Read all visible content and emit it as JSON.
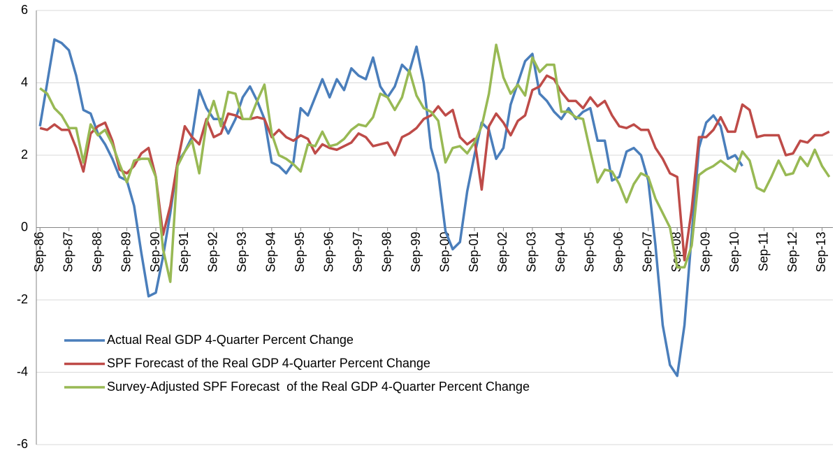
{
  "chart_data": {
    "type": "line",
    "categories": [
      "Sep-86",
      null,
      null,
      null,
      "Sep-87",
      null,
      null,
      null,
      "Sep-88",
      null,
      null,
      null,
      "Sep-89",
      null,
      null,
      null,
      "Sep-90",
      null,
      null,
      null,
      "Sep-91",
      null,
      null,
      null,
      "Sep-92",
      null,
      null,
      null,
      "Sep-93",
      null,
      null,
      null,
      "Sep-94",
      null,
      null,
      null,
      "Sep-95",
      null,
      null,
      null,
      "Sep-96",
      null,
      null,
      null,
      "Sep-97",
      null,
      null,
      null,
      "Sep-98",
      null,
      null,
      null,
      "Sep-99",
      null,
      null,
      null,
      "Sep-00",
      null,
      null,
      null,
      "Sep-01",
      null,
      null,
      null,
      "Sep-02",
      null,
      null,
      null,
      "Sep-03",
      null,
      null,
      null,
      "Sep-04",
      null,
      null,
      null,
      "Sep-05",
      null,
      null,
      null,
      "Sep-06",
      null,
      null,
      null,
      "Sep-07",
      null,
      null,
      null,
      "Sep-08",
      null,
      null,
      null,
      "Sep-09",
      null,
      null,
      null,
      "Sep-10",
      null,
      null,
      null,
      "Sep-11",
      null,
      null,
      null,
      "Sep-12",
      null,
      null,
      null,
      "Sep-13",
      null
    ],
    "series": [
      {
        "name": "Actual Real GDP 4-Quarter Percent Change",
        "color": "#4a7ebb",
        "values": [
          2.8,
          4.0,
          5.2,
          5.1,
          4.9,
          4.2,
          3.25,
          3.15,
          2.6,
          2.3,
          1.9,
          1.4,
          1.3,
          0.6,
          -0.7,
          -1.9,
          -1.8,
          -0.8,
          0.4,
          1.8,
          2.1,
          2.5,
          3.8,
          3.3,
          3.0,
          3.0,
          2.6,
          3.0,
          3.6,
          3.9,
          3.5,
          3.0,
          1.8,
          1.7,
          1.5,
          1.8,
          3.3,
          3.1,
          3.6,
          4.1,
          3.6,
          4.1,
          3.8,
          4.4,
          4.2,
          4.1,
          4.7,
          3.9,
          3.6,
          3.9,
          4.5,
          4.3,
          5.0,
          4.0,
          2.2,
          1.5,
          -0.1,
          -0.6,
          -0.4,
          1.0,
          2.0,
          2.9,
          2.7,
          1.9,
          2.2,
          3.4,
          4.0,
          4.6,
          4.8,
          3.7,
          3.5,
          3.2,
          3.0,
          3.3,
          3.0,
          3.2,
          3.3,
          2.4,
          2.4,
          1.3,
          1.4,
          2.1,
          2.2,
          2.0,
          1.3,
          -0.5,
          -2.7,
          -3.8,
          -4.1,
          -2.7,
          -0.2,
          2.2,
          2.9,
          3.1,
          2.8,
          1.9,
          2.0,
          1.7,
          null,
          null,
          null,
          null,
          null,
          null,
          null,
          null,
          null,
          null,
          null,
          null
        ]
      },
      {
        "name": "SPF Forecast of the Real GDP 4-Quarter Percent Change",
        "color": "#be4b48",
        "values": [
          2.75,
          2.7,
          2.85,
          2.7,
          2.7,
          2.2,
          1.55,
          2.6,
          2.8,
          2.9,
          2.4,
          1.6,
          1.5,
          1.7,
          2.05,
          2.2,
          1.4,
          -0.2,
          0.6,
          1.8,
          2.8,
          2.5,
          2.3,
          3.0,
          2.5,
          2.6,
          3.15,
          3.1,
          3.0,
          3.0,
          3.05,
          3.0,
          2.5,
          2.7,
          2.5,
          2.4,
          2.55,
          2.45,
          2.05,
          2.3,
          2.2,
          2.15,
          2.25,
          2.35,
          2.6,
          2.5,
          2.25,
          2.3,
          2.35,
          2.0,
          2.5,
          2.6,
          2.75,
          3.0,
          3.1,
          3.35,
          3.1,
          3.25,
          2.5,
          2.3,
          2.45,
          1.05,
          2.8,
          3.15,
          2.9,
          2.55,
          2.95,
          3.1,
          3.8,
          3.9,
          4.2,
          4.1,
          3.75,
          3.5,
          3.5,
          3.3,
          3.6,
          3.35,
          3.5,
          3.1,
          2.8,
          2.75,
          2.85,
          2.7,
          2.7,
          2.2,
          1.9,
          1.5,
          1.4,
          -0.9,
          0.5,
          2.5,
          2.5,
          2.7,
          3.05,
          2.65,
          2.65,
          3.4,
          3.25,
          2.5,
          2.55,
          2.55,
          2.55,
          2.0,
          2.05,
          2.4,
          2.35,
          2.55,
          2.55,
          2.65
        ]
      },
      {
        "name": "Survey-Adjusted SPF Forecast  of the Real GDP 4-Quarter Percent Change",
        "color": "#98b954",
        "values": [
          3.85,
          3.7,
          3.3,
          3.1,
          2.75,
          2.75,
          1.8,
          2.85,
          2.55,
          2.7,
          2.3,
          1.75,
          1.25,
          1.85,
          1.9,
          1.9,
          1.4,
          -0.6,
          -1.5,
          1.7,
          2.1,
          2.4,
          1.5,
          2.9,
          3.5,
          2.8,
          3.75,
          3.7,
          3.0,
          3.0,
          3.5,
          3.95,
          2.6,
          2.0,
          1.9,
          1.75,
          1.55,
          2.3,
          2.25,
          2.65,
          2.25,
          2.3,
          2.45,
          2.7,
          2.85,
          2.8,
          3.05,
          3.7,
          3.6,
          3.25,
          3.6,
          4.35,
          3.65,
          3.3,
          3.2,
          2.95,
          1.8,
          2.2,
          2.25,
          2.05,
          2.35,
          2.8,
          3.7,
          5.05,
          4.15,
          3.7,
          3.95,
          3.65,
          4.7,
          4.3,
          4.5,
          4.5,
          3.2,
          3.2,
          3.05,
          3.0,
          2.1,
          1.25,
          1.6,
          1.55,
          1.2,
          0.7,
          1.2,
          1.5,
          1.4,
          0.8,
          0.4,
          0.0,
          -1.1,
          -1.1,
          -0.5,
          1.45,
          1.6,
          1.7,
          1.85,
          1.7,
          1.55,
          2.1,
          1.85,
          1.1,
          1.0,
          1.4,
          1.85,
          1.45,
          1.5,
          1.95,
          1.7,
          2.15,
          1.7,
          1.4
        ]
      }
    ],
    "ylim": [
      -6,
      6
    ],
    "yticks": [
      -6,
      -4,
      -2,
      0,
      2,
      4,
      6
    ],
    "grid": true,
    "legend": "bottom-left"
  }
}
